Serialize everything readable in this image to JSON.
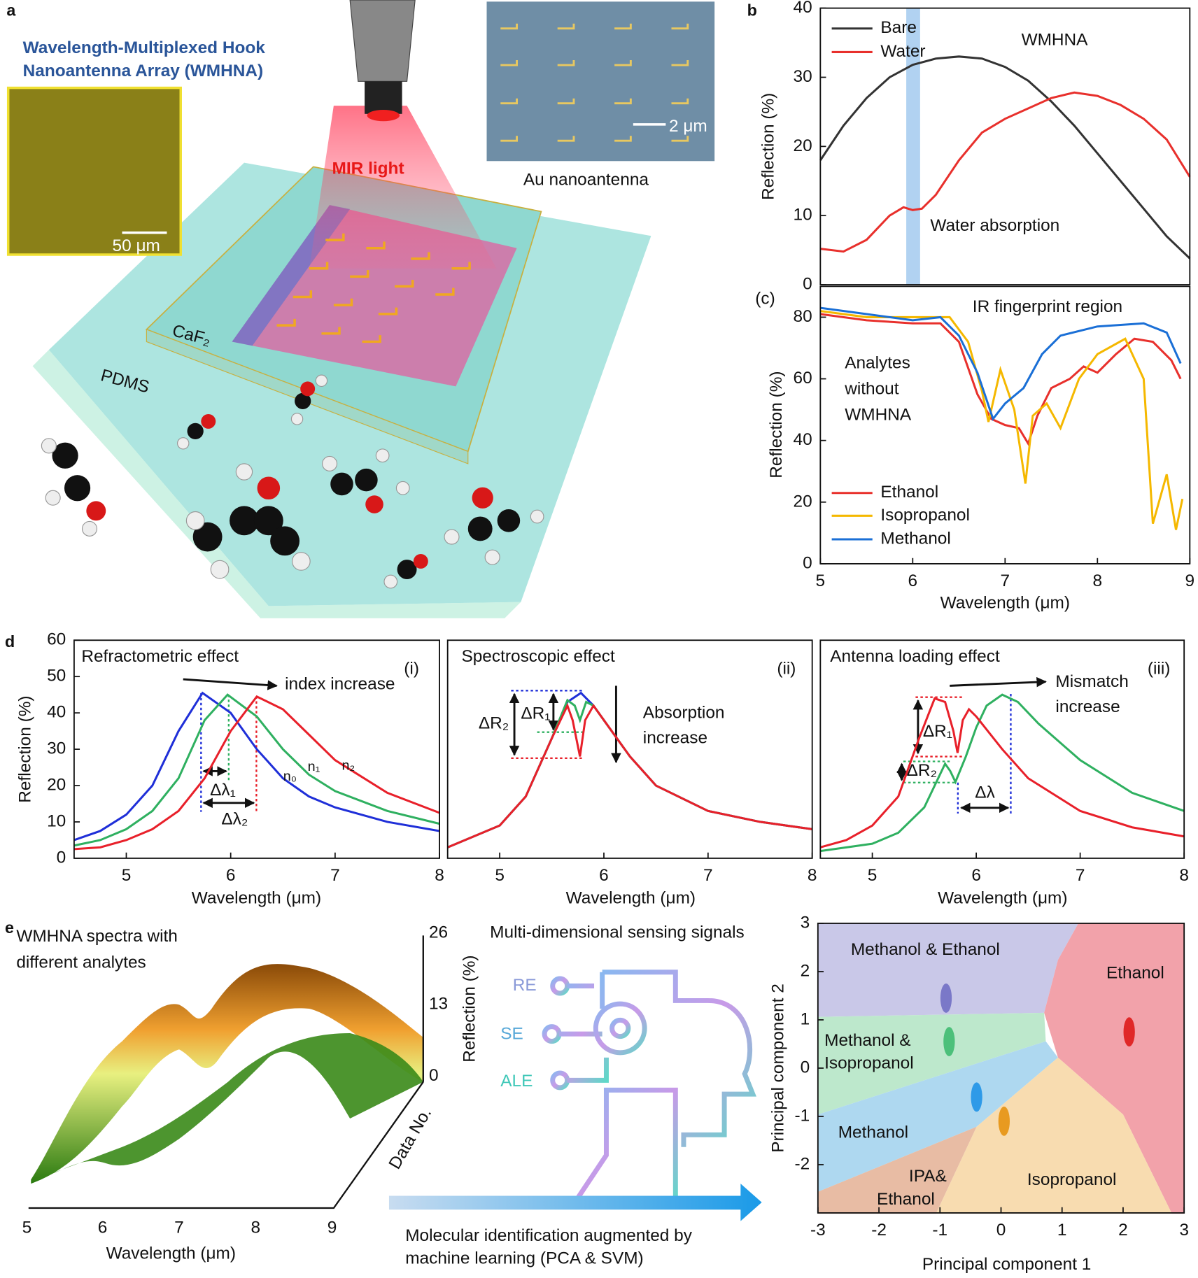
{
  "figure": {
    "panel_labels": [
      "a",
      "b",
      "(c)",
      "d",
      "e"
    ],
    "panel_a": {
      "title_lines": [
        "Wavelength-Multiplexed Hook",
        "Nanoantenna Array (WMHNA)"
      ],
      "scale_bar_1": "50 μm",
      "scale_bar_2": "2 μm",
      "sem_caption": "Au nanoantenna",
      "beam_label": "MIR light",
      "substrate": "CaF₂",
      "base": "PDMS"
    },
    "panel_e": {
      "spectra_title_lines": [
        "WMHNA spectra with",
        "different analytes"
      ],
      "x_axis_label": "Wavelength (μm)",
      "x_tick_labels": [
        "5",
        "6",
        "7",
        "8",
        "9"
      ],
      "z_axis_label": "Reflection (%)",
      "z_tick_labels": [
        "0",
        "13",
        "26"
      ],
      "depth_axis_label": "Data No.",
      "signals_title": "Multi-dimensional sensing signals",
      "signals": [
        "RE",
        "SE",
        "ALE"
      ],
      "caption_lines": [
        "Molecular identification augmented by",
        "machine learning (PCA & SVM)"
      ]
    }
  },
  "chart_data": [
    {
      "type": "line",
      "ylabel": "Reflection (%)",
      "xlim": [
        5,
        9
      ],
      "ylim": [
        0,
        40
      ],
      "yticks": [
        0,
        10,
        20,
        30,
        40
      ],
      "highlight_band": [
        5.93,
        6.08
      ],
      "band_color": "#a9cdf0",
      "legend": "upper left",
      "annotations": [
        "WMHNA",
        "Water absorption"
      ],
      "series": [
        {
          "name": "Bare",
          "color": "#333333",
          "x": [
            5,
            5.25,
            5.5,
            5.75,
            6,
            6.25,
            6.5,
            6.75,
            7,
            7.25,
            7.5,
            7.75,
            8,
            8.25,
            8.5,
            8.75,
            9
          ],
          "values": [
            18,
            23,
            27,
            30,
            31.8,
            32.7,
            33,
            32.7,
            31.5,
            29.5,
            26.5,
            23,
            19,
            15,
            11,
            7,
            3.8
          ]
        },
        {
          "name": "Water",
          "color": "#e8302c",
          "x": [
            5,
            5.25,
            5.5,
            5.75,
            5.9,
            6,
            6.1,
            6.25,
            6.5,
            6.75,
            7,
            7.25,
            7.5,
            7.75,
            8,
            8.25,
            8.5,
            8.75,
            9
          ],
          "values": [
            5.2,
            4.8,
            6.5,
            10,
            11.2,
            10.8,
            11,
            13,
            18,
            22,
            24,
            25.5,
            27,
            27.8,
            27.3,
            26,
            24,
            21,
            15.6
          ]
        }
      ]
    },
    {
      "type": "line",
      "xlabel": "Wavelength (μm)",
      "ylabel": "Reflection (%)",
      "xlim": [
        5,
        9
      ],
      "xticks": [
        5,
        6,
        7,
        8,
        9
      ],
      "ylim": [
        0,
        90
      ],
      "yticks": [
        0,
        20,
        40,
        60,
        80
      ],
      "legend": "lower left",
      "annotations": [
        "IR fingerprint region",
        "Analytes",
        "without",
        "WMHNA"
      ],
      "series": [
        {
          "name": "Ethanol",
          "color": "#e8302c",
          "x": [
            5,
            5.5,
            6,
            6.3,
            6.5,
            6.7,
            6.85,
            7,
            7.15,
            7.25,
            7.35,
            7.5,
            7.7,
            7.85,
            8,
            8.2,
            8.4,
            8.6,
            8.8,
            8.9
          ],
          "values": [
            81,
            79,
            78,
            78,
            72,
            55,
            47,
            45,
            44,
            39,
            48,
            57,
            60,
            64,
            62,
            68,
            73,
            72,
            66,
            60
          ]
        },
        {
          "name": "Isopropanol",
          "color": "#f5b800",
          "x": [
            5,
            5.5,
            6,
            6.4,
            6.6,
            6.75,
            6.82,
            6.95,
            7.1,
            7.22,
            7.3,
            7.45,
            7.6,
            7.8,
            8,
            8.3,
            8.5,
            8.6,
            8.75,
            8.85,
            8.92
          ],
          "values": [
            82,
            80,
            80,
            80,
            72,
            56,
            46,
            63,
            50,
            26,
            48,
            52,
            44,
            60,
            68,
            73,
            60,
            13,
            29,
            11,
            21
          ]
        },
        {
          "name": "Methanol",
          "color": "#1a6fd6",
          "x": [
            5,
            5.5,
            6,
            6.3,
            6.5,
            6.7,
            6.87,
            7,
            7.2,
            7.4,
            7.6,
            8,
            8.5,
            8.75,
            8.9
          ],
          "values": [
            83,
            81,
            79,
            80,
            74,
            62,
            47,
            52,
            57,
            68,
            74,
            77,
            78,
            75,
            65
          ]
        }
      ]
    },
    {
      "type": "line",
      "xlabel": "Wavelength (μm)",
      "ylabel": "Reflection (%)",
      "xlim": [
        4.5,
        8
      ],
      "xticks": [
        5,
        6,
        7,
        8
      ],
      "ylim": [
        0,
        60
      ],
      "yticks": [
        0,
        10,
        20,
        30,
        40,
        50,
        60
      ],
      "annotations": [
        "Refractometric effect",
        "(i)",
        "index increase",
        "Δλ₁",
        "Δλ₂"
      ],
      "series": [
        {
          "name": "n₀",
          "color": "#1f2fd8",
          "x": [
            4.5,
            4.75,
            5,
            5.25,
            5.5,
            5.73,
            6,
            6.25,
            6.5,
            6.75,
            7,
            7.5,
            8
          ],
          "values": [
            5,
            7.5,
            12,
            20,
            35,
            45.5,
            40,
            30,
            22,
            17,
            14,
            10,
            7.5
          ]
        },
        {
          "name": "n₁",
          "color": "#2fb060",
          "x": [
            4.5,
            4.75,
            5,
            5.25,
            5.5,
            5.75,
            5.97,
            6.25,
            6.5,
            6.75,
            7,
            7.5,
            8
          ],
          "values": [
            3.5,
            5,
            8,
            13,
            22,
            38,
            45,
            39,
            30,
            23,
            18.5,
            13,
            9.5
          ]
        },
        {
          "name": "n₂",
          "color": "#e8202a",
          "x": [
            4.5,
            4.75,
            5,
            5.25,
            5.5,
            5.75,
            6,
            6.25,
            6.5,
            6.75,
            7,
            7.5,
            8
          ],
          "values": [
            2.5,
            3,
            5,
            8,
            13,
            22,
            35,
            44.5,
            41,
            34,
            27,
            18,
            12.5
          ]
        }
      ]
    },
    {
      "type": "line",
      "xlabel": "Wavelength (μm)",
      "xlim": [
        4.5,
        8
      ],
      "xticks": [
        5,
        6,
        7,
        8
      ],
      "ylim": [
        0,
        60
      ],
      "annotations": [
        "Spectroscopic effect",
        "(ii)",
        "Absorption",
        "increase",
        "ΔR₂",
        "ΔR₁"
      ],
      "series": [
        {
          "color": "#1f2fd8",
          "x": [
            4.5,
            5,
            5.25,
            5.5,
            5.65,
            5.78,
            5.9,
            6,
            6.25,
            6.5,
            7,
            7.5,
            8
          ],
          "values": [
            3,
            9,
            17,
            33,
            43,
            45.5,
            42,
            38,
            28,
            20,
            13,
            10,
            8
          ]
        },
        {
          "color": "#2fb060",
          "x": [
            4.5,
            5,
            5.25,
            5.5,
            5.65,
            5.72,
            5.77,
            5.83,
            5.9,
            6,
            6.25,
            6.5,
            7,
            7.5,
            8
          ],
          "values": [
            3,
            9,
            17,
            33,
            43.5,
            42,
            38,
            43,
            42,
            38,
            28,
            20,
            13,
            10,
            8
          ]
        },
        {
          "color": "#e8202a",
          "x": [
            4.5,
            5,
            5.25,
            5.5,
            5.65,
            5.7,
            5.77,
            5.82,
            5.9,
            6,
            6.25,
            6.5,
            7,
            7.5,
            8
          ],
          "values": [
            3,
            9,
            17,
            33,
            42,
            38,
            28,
            38,
            42,
            38,
            28,
            20,
            13,
            10,
            8
          ]
        }
      ]
    },
    {
      "type": "line",
      "xlabel": "Wavelength (μm)",
      "xlim": [
        4.5,
        8
      ],
      "xticks": [
        5,
        6,
        7,
        8
      ],
      "ylim": [
        0,
        60
      ],
      "annotations": [
        "Antenna loading effect",
        "(iii)",
        "Mismatch",
        "increase",
        "ΔR₁",
        "ΔR₂",
        "Δλ"
      ],
      "series": [
        {
          "color": "#2fb060",
          "x": [
            4.5,
            5,
            5.25,
            5.5,
            5.7,
            5.75,
            5.8,
            5.9,
            6,
            6.1,
            6.25,
            6.4,
            6.6,
            7,
            7.5,
            8
          ],
          "values": [
            2,
            4,
            7,
            14,
            26,
            24,
            21,
            28,
            36,
            42,
            45,
            43,
            37,
            27,
            18,
            13
          ]
        },
        {
          "color": "#e8202a",
          "x": [
            4.5,
            4.75,
            5,
            5.25,
            5.45,
            5.6,
            5.7,
            5.78,
            5.82,
            5.87,
            5.93,
            6,
            6.25,
            6.5,
            7,
            7.5,
            8
          ],
          "values": [
            3,
            5,
            9,
            17,
            33,
            44,
            43,
            35,
            29,
            38,
            41,
            39,
            30,
            22,
            13,
            8.5,
            6
          ]
        }
      ]
    },
    {
      "type": "scatter",
      "xlabel": "Principal component 1",
      "ylabel": "Principal component 2",
      "xlim": [
        -3,
        3
      ],
      "xticks": [
        -3,
        -2,
        -1,
        0,
        1,
        2,
        3
      ],
      "ylim": [
        -3,
        3
      ],
      "yticks": [
        -2,
        -1,
        0,
        1,
        2,
        3
      ],
      "annotations": [
        "Methanol & Ethanol",
        "Ethanol",
        "Methanol &",
        "Isopropanol",
        "Methanol",
        "IPA&",
        "Ethanol",
        "Isopropanol"
      ],
      "points": [
        {
          "x": -0.9,
          "y": 1.45,
          "color": "#7a78c8"
        },
        {
          "x": -0.85,
          "y": 0.55,
          "color": "#4cc07a"
        },
        {
          "x": -0.4,
          "y": -0.6,
          "color": "#2e9ae8"
        },
        {
          "x": 0.05,
          "y": -1.1,
          "color": "#e89a20"
        },
        {
          "x": 2.1,
          "y": 0.75,
          "color": "#e02828"
        }
      ]
    }
  ]
}
